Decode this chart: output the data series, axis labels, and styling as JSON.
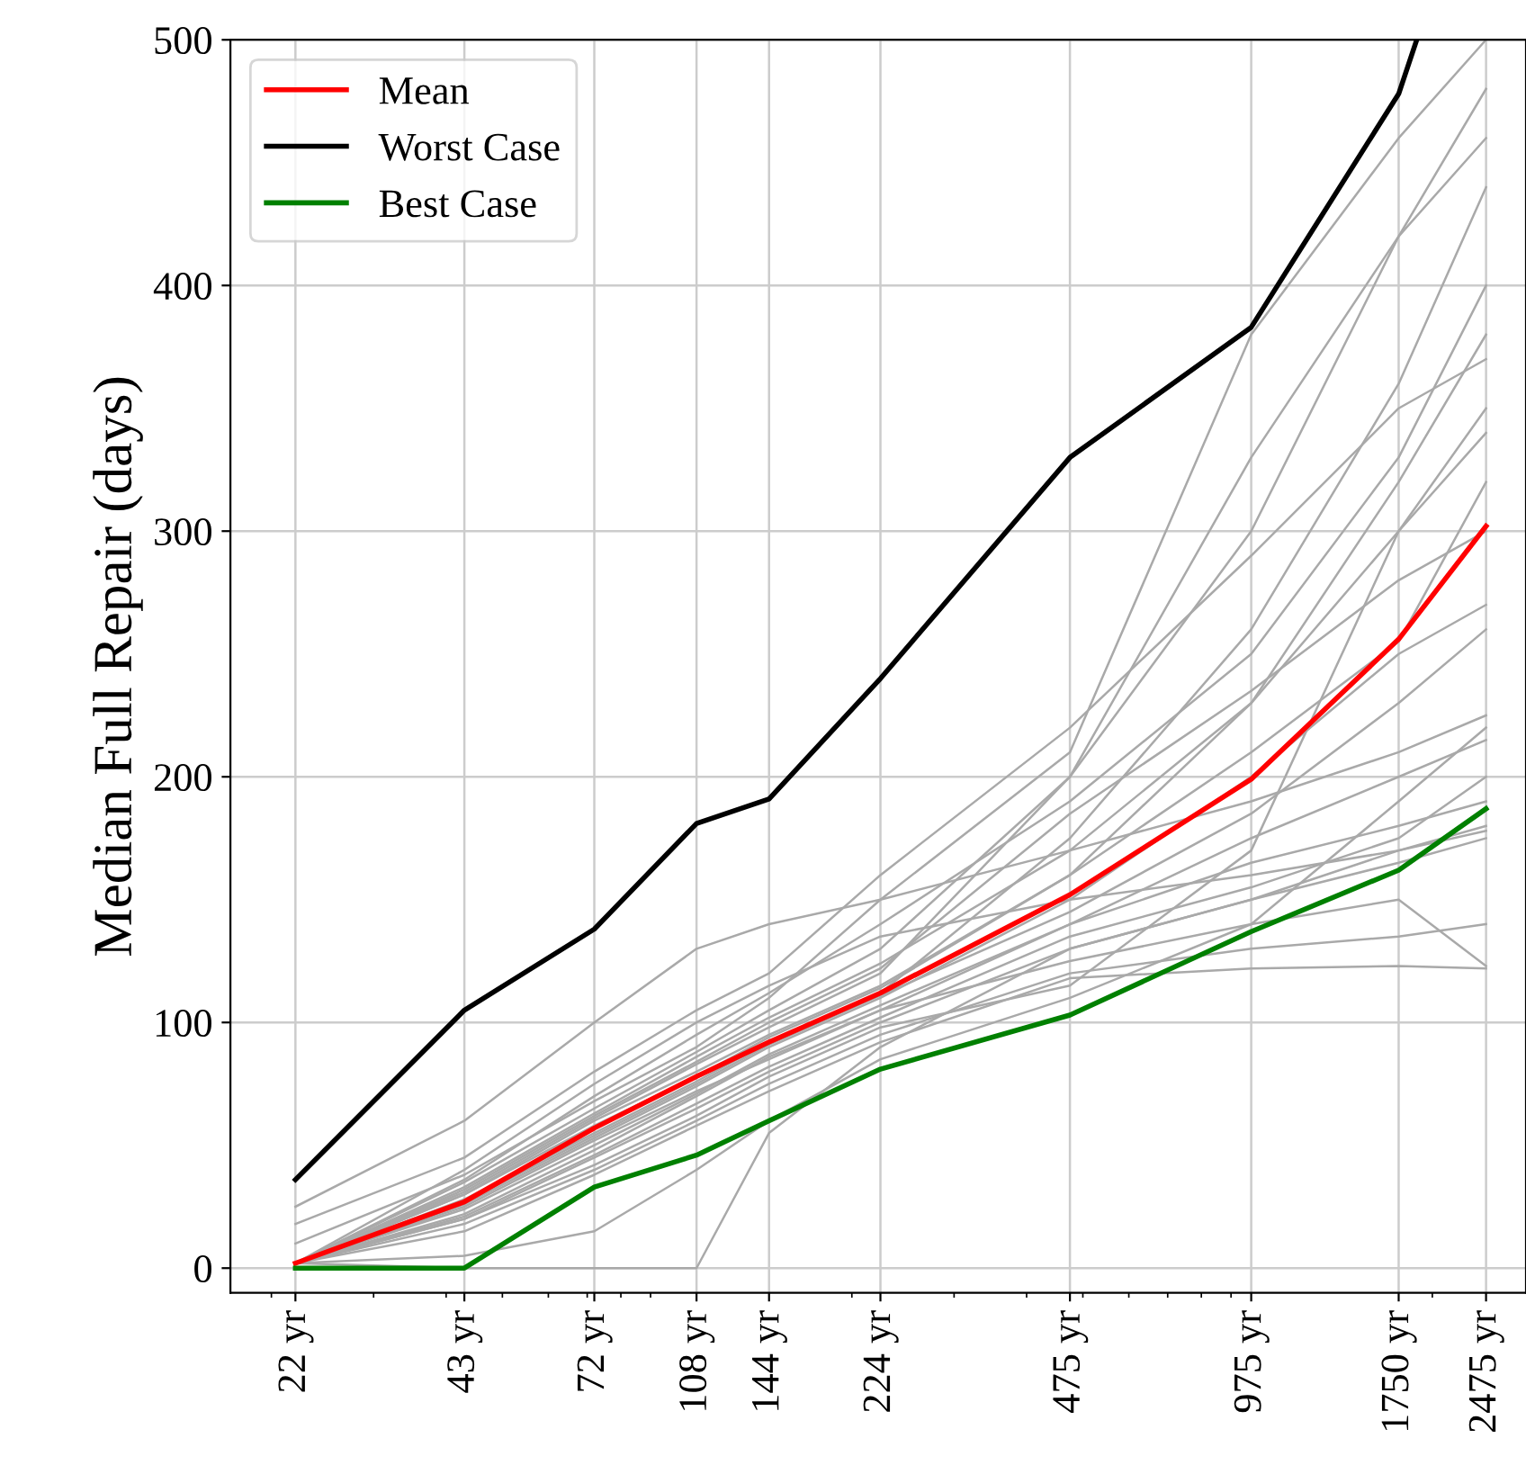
{
  "chart_data": {
    "type": "line",
    "ylabel": "Median Full Repair (days)",
    "x": [
      22,
      43,
      72,
      108,
      144,
      224,
      475,
      975,
      1750,
      2475
    ],
    "xlim": [
      17,
      2900
    ],
    "ylim": [
      -10,
      500
    ],
    "log": "x",
    "xticks": [
      {
        "value": 22,
        "label": "22 yr"
      },
      {
        "value": 43,
        "label": "43 yr"
      },
      {
        "value": 72,
        "label": "72 yr"
      },
      {
        "value": 108,
        "label": "108 yr"
      },
      {
        "value": 144,
        "label": "144 yr"
      },
      {
        "value": 224,
        "label": "224 yr"
      },
      {
        "value": 475,
        "label": "475 yr"
      },
      {
        "value": 975,
        "label": "975 yr"
      },
      {
        "value": 1750,
        "label": "1750 yr"
      },
      {
        "value": 2475,
        "label": "2475 yr"
      }
    ],
    "yticks": [
      0,
      100,
      200,
      300,
      400,
      500
    ],
    "grid": true,
    "legend": "top left",
    "series": [
      {
        "color": "#a9a9a9",
        "values": [
          2,
          20,
          45,
          65,
          80,
          100,
          130,
          150,
          165,
          175
        ]
      },
      {
        "color": "#a9a9a9",
        "values": [
          2,
          25,
          52,
          72,
          85,
          105,
          140,
          175,
          200,
          215
        ]
      },
      {
        "color": "#a9a9a9",
        "values": [
          2,
          30,
          60,
          80,
          95,
          115,
          160,
          230,
          320,
          380
        ]
      },
      {
        "color": "#a9a9a9",
        "values": [
          2,
          18,
          40,
          60,
          75,
          95,
          120,
          130,
          135,
          140
        ]
      },
      {
        "color": "#a9a9a9",
        "values": [
          2,
          35,
          65,
          88,
          105,
          130,
          200,
          300,
          420,
          480
        ]
      },
      {
        "color": "#a9a9a9",
        "values": [
          2,
          22,
          48,
          70,
          86,
          105,
          125,
          140,
          150,
          123
        ]
      },
      {
        "color": "#a9a9a9",
        "values": [
          2,
          28,
          55,
          76,
          92,
          112,
          175,
          260,
          360,
          440
        ]
      },
      {
        "color": "#a9a9a9",
        "values": [
          2,
          40,
          75,
          100,
          115,
          135,
          150,
          160,
          170,
          178
        ]
      },
      {
        "color": "#a9a9a9",
        "values": [
          2,
          15,
          38,
          58,
          72,
          92,
          118,
          122,
          123,
          122
        ]
      },
      {
        "color": "#a9a9a9",
        "values": [
          2,
          32,
          62,
          84,
          100,
          122,
          185,
          235,
          280,
          300
        ]
      },
      {
        "color": "#a9a9a9",
        "values": [
          2,
          26,
          53,
          74,
          90,
          110,
          150,
          200,
          250,
          270
        ]
      },
      {
        "color": "#a9a9a9",
        "values": [
          2,
          24,
          50,
          71,
          87,
          107,
          140,
          165,
          180,
          190
        ]
      },
      {
        "color": "#a9a9a9",
        "values": [
          2,
          36,
          70,
          95,
          112,
          140,
          190,
          250,
          330,
          400
        ]
      },
      {
        "color": "#a9a9a9",
        "values": [
          18,
          45,
          80,
          105,
          120,
          160,
          220,
          290,
          350,
          370
        ]
      },
      {
        "color": "#a9a9a9",
        "values": [
          10,
          38,
          68,
          90,
          110,
          150,
          210,
          380,
          460,
          500
        ]
      },
      {
        "color": "#a9a9a9",
        "values": [
          2,
          20,
          42,
          62,
          78,
          98,
          115,
          170,
          300,
          350
        ]
      },
      {
        "color": "#a9a9a9",
        "values": [
          2,
          0,
          0,
          0,
          55,
          90,
          130,
          150,
          170,
          180
        ]
      },
      {
        "color": "#a9a9a9",
        "values": [
          2,
          5,
          15,
          40,
          60,
          85,
          110,
          140,
          190,
          220
        ]
      },
      {
        "color": "#a9a9a9",
        "values": [
          25,
          60,
          100,
          130,
          140,
          150,
          170,
          190,
          210,
          225
        ]
      },
      {
        "color": "#a9a9a9",
        "values": [
          2,
          30,
          58,
          78,
          94,
          114,
          160,
          210,
          255,
          320
        ]
      },
      {
        "color": "#a9a9a9",
        "values": [
          2,
          27,
          54,
          75,
          91,
          111,
          145,
          185,
          230,
          260
        ]
      },
      {
        "color": "#a9a9a9",
        "values": [
          2,
          33,
          63,
          86,
          102,
          124,
          170,
          230,
          300,
          340
        ]
      },
      {
        "color": "#a9a9a9",
        "values": [
          2,
          21,
          46,
          67,
          82,
          102,
          135,
          155,
          175,
          200
        ]
      },
      {
        "color": "#a9a9a9",
        "values": [
          2,
          31,
          61,
          83,
          98,
          120,
          200,
          330,
          420,
          460
        ]
      },
      {
        "name": "Mean",
        "color": "#ff0000",
        "values": [
          2,
          27,
          57,
          78,
          92,
          112,
          152,
          199,
          256,
          302
        ]
      },
      {
        "name": "Worst Case",
        "color": "#000000",
        "x": [
          22,
          43,
          72,
          108,
          144,
          224,
          475,
          975,
          1750,
          1880
        ],
        "values": [
          36,
          105,
          138,
          181,
          191,
          240,
          330,
          383,
          478,
          500
        ]
      },
      {
        "name": "Best Case",
        "color": "#008000",
        "values": [
          0,
          0,
          33,
          46,
          60,
          81,
          103,
          137,
          162,
          187
        ]
      }
    ]
  }
}
